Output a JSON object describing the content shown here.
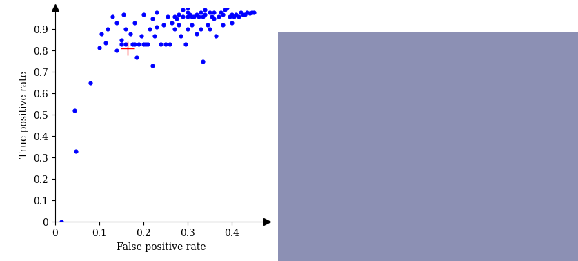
{
  "chart_data": {
    "type": "scatter",
    "x_label": "False positive rate",
    "y_label": "True positive rate",
    "xlim": [
      0,
      0.48
    ],
    "ylim": [
      0,
      1.0
    ],
    "xticks": [
      0,
      0.1,
      0.2,
      0.3,
      0.4
    ],
    "yticks": [
      0,
      0.1,
      0.2,
      0.3,
      0.4,
      0.5,
      0.6,
      0.7,
      0.8,
      0.9
    ],
    "grid": false,
    "series": [
      {
        "color": "#0000ff",
        "marker": "o",
        "x": [
          0.015,
          0.045,
          0.048,
          0.08,
          0.1,
          0.105,
          0.115,
          0.12,
          0.13,
          0.14,
          0.14,
          0.15,
          0.15,
          0.155,
          0.16,
          0.16,
          0.17,
          0.175,
          0.18,
          0.18,
          0.185,
          0.19,
          0.195,
          0.2,
          0.2,
          0.205,
          0.21,
          0.215,
          0.22,
          0.22,
          0.225,
          0.23,
          0.23,
          0.24,
          0.245,
          0.25,
          0.255,
          0.26,
          0.265,
          0.27,
          0.27,
          0.275,
          0.28,
          0.28,
          0.285,
          0.29,
          0.29,
          0.295,
          0.3,
          0.3,
          0.3,
          0.3,
          0.305,
          0.31,
          0.31,
          0.315,
          0.32,
          0.32,
          0.325,
          0.33,
          0.33,
          0.335,
          0.335,
          0.34,
          0.34,
          0.345,
          0.35,
          0.35,
          0.355,
          0.36,
          0.36,
          0.365,
          0.37,
          0.375,
          0.38,
          0.38,
          0.385,
          0.39,
          0.395,
          0.4,
          0.4,
          0.405,
          0.41,
          0.415,
          0.42,
          0.425,
          0.43,
          0.435,
          0.44,
          0.445,
          0.45
        ],
        "values": [
          0.0,
          0.52,
          0.33,
          0.65,
          0.815,
          0.88,
          0.835,
          0.9,
          0.96,
          0.8,
          0.93,
          0.85,
          0.83,
          0.97,
          0.83,
          0.9,
          0.88,
          0.83,
          0.83,
          0.93,
          0.77,
          0.83,
          0.87,
          0.83,
          0.97,
          0.83,
          0.83,
          0.9,
          0.73,
          0.95,
          0.87,
          0.98,
          0.91,
          0.83,
          0.92,
          0.83,
          0.96,
          0.83,
          0.93,
          0.9,
          0.96,
          0.95,
          0.92,
          0.97,
          0.87,
          0.96,
          0.99,
          0.83,
          0.96,
          0.98,
          0.9,
          1.0,
          0.97,
          0.96,
          0.92,
          0.96,
          0.97,
          0.88,
          0.96,
          0.98,
          0.9,
          0.75,
          0.96,
          0.97,
          0.99,
          0.92,
          0.98,
          0.9,
          0.96,
          0.95,
          0.98,
          0.87,
          0.96,
          0.98,
          0.97,
          0.92,
          0.99,
          1.0,
          0.96,
          0.97,
          0.93,
          0.96,
          0.97,
          0.96,
          0.98,
          0.97,
          0.97,
          0.98,
          0.975,
          0.98,
          0.98
        ]
      },
      {
        "color": "#ff0000",
        "marker": "+",
        "x": [
          0.165
        ],
        "values": [
          0.81
        ]
      }
    ]
  }
}
